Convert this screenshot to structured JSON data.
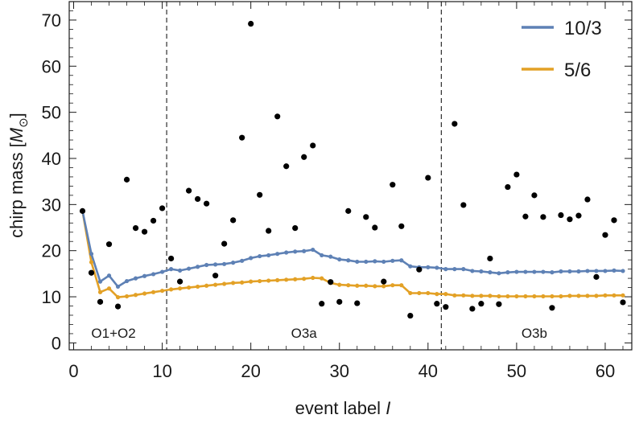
{
  "chart_data": {
    "type": "scatter",
    "xlabel": "event label",
    "xlabel_var": "I",
    "ylabel": "chirp mass",
    "ylabel_unit": "M",
    "xlim": [
      -0.5,
      63
    ],
    "ylim": [
      -1.5,
      74
    ],
    "xticks": [
      0,
      10,
      20,
      30,
      40,
      50,
      60
    ],
    "yticks": [
      0,
      10,
      20,
      30,
      40,
      50,
      60,
      70
    ],
    "grid": false,
    "legend_position": "top-right",
    "dividers": [
      10.5,
      41.5
    ],
    "regions": [
      {
        "label": "O1+O2",
        "x": 4.5
      },
      {
        "label": "O3a",
        "x": 26
      },
      {
        "label": "O3b",
        "x": 52
      }
    ],
    "points": {
      "color": "#000000",
      "x": [
        1,
        2,
        3,
        4,
        5,
        6,
        7,
        8,
        9,
        10,
        11,
        12,
        13,
        14,
        15,
        16,
        17,
        18,
        19,
        20,
        21,
        22,
        23,
        24,
        25,
        26,
        27,
        28,
        29,
        30,
        31,
        32,
        33,
        34,
        35,
        36,
        37,
        38,
        39,
        40,
        41,
        42,
        43,
        44,
        45,
        46,
        47,
        48,
        49,
        50,
        51,
        52,
        53,
        54,
        55,
        56,
        57,
        58,
        59,
        60,
        61,
        62
      ],
      "y": [
        28.6,
        15.2,
        8.9,
        21.4,
        7.9,
        35.4,
        24.9,
        24.1,
        26.5,
        29.2,
        18.3,
        13.3,
        33.0,
        31.2,
        30.2,
        14.6,
        21.5,
        26.6,
        44.5,
        69.2,
        32.1,
        24.3,
        49.1,
        38.3,
        24.9,
        40.3,
        42.8,
        8.5,
        13.2,
        8.9,
        28.6,
        8.6,
        27.3,
        25.0,
        13.3,
        34.3,
        25.3,
        5.9,
        15.9,
        35.8,
        8.5,
        7.8,
        47.5,
        29.9,
        7.4,
        8.5,
        18.3,
        8.4,
        33.8,
        36.5,
        27.4,
        32.0,
        27.3,
        7.6,
        27.7,
        26.8,
        27.6,
        31.1,
        14.3,
        23.4,
        26.6,
        8.8
      ]
    },
    "series": [
      {
        "name": "10/3",
        "color": "#5e81b5",
        "x": [
          1,
          2,
          3,
          4,
          5,
          6,
          7,
          8,
          9,
          10,
          11,
          12,
          13,
          14,
          15,
          16,
          17,
          18,
          19,
          20,
          21,
          22,
          23,
          24,
          25,
          26,
          27,
          28,
          29,
          30,
          31,
          32,
          33,
          34,
          35,
          36,
          37,
          38,
          39,
          40,
          41,
          42,
          43,
          44,
          45,
          46,
          47,
          48,
          49,
          50,
          51,
          52,
          53,
          54,
          55,
          56,
          57,
          58,
          59,
          60,
          61,
          62
        ],
        "values": [
          28.6,
          19.3,
          13.3,
          14.6,
          12.2,
          13.4,
          14.0,
          14.5,
          14.9,
          15.4,
          16.0,
          15.7,
          16.1,
          16.5,
          16.9,
          17.0,
          17.1,
          17.4,
          17.8,
          18.4,
          18.8,
          19.0,
          19.3,
          19.6,
          19.8,
          19.9,
          20.2,
          19.0,
          18.7,
          18.1,
          17.9,
          17.6,
          17.6,
          17.7,
          17.6,
          17.8,
          17.9,
          16.6,
          16.4,
          16.4,
          16.3,
          16.0,
          16.0,
          16.0,
          15.6,
          15.5,
          15.3,
          15.1,
          15.3,
          15.4,
          15.4,
          15.4,
          15.4,
          15.3,
          15.5,
          15.5,
          15.5,
          15.6,
          15.6,
          15.6,
          15.7,
          15.6
        ]
      },
      {
        "name": "5/6",
        "color": "#e3a126",
        "x": [
          1,
          2,
          3,
          4,
          5,
          6,
          7,
          8,
          9,
          10,
          11,
          12,
          13,
          14,
          15,
          16,
          17,
          18,
          19,
          20,
          21,
          22,
          23,
          24,
          25,
          26,
          27,
          28,
          29,
          30,
          31,
          32,
          33,
          34,
          35,
          36,
          37,
          38,
          39,
          40,
          41,
          42,
          43,
          44,
          45,
          46,
          47,
          48,
          49,
          50,
          51,
          52,
          53,
          54,
          55,
          56,
          57,
          58,
          59,
          60,
          61,
          62
        ],
        "values": [
          28.6,
          17.5,
          11.0,
          11.8,
          9.9,
          10.1,
          10.4,
          10.7,
          11.0,
          11.3,
          11.6,
          11.8,
          12.0,
          12.2,
          12.4,
          12.6,
          12.8,
          13.0,
          13.1,
          13.3,
          13.4,
          13.5,
          13.6,
          13.7,
          13.8,
          13.9,
          14.1,
          14.0,
          13.0,
          12.6,
          12.5,
          12.4,
          12.4,
          12.3,
          12.3,
          12.5,
          12.5,
          10.8,
          10.8,
          10.8,
          10.6,
          10.6,
          10.3,
          10.3,
          10.2,
          10.2,
          10.2,
          10.1,
          10.1,
          10.1,
          10.1,
          10.1,
          10.1,
          10.1,
          10.1,
          10.2,
          10.2,
          10.2,
          10.2,
          10.3,
          10.3,
          10.3
        ]
      }
    ]
  }
}
